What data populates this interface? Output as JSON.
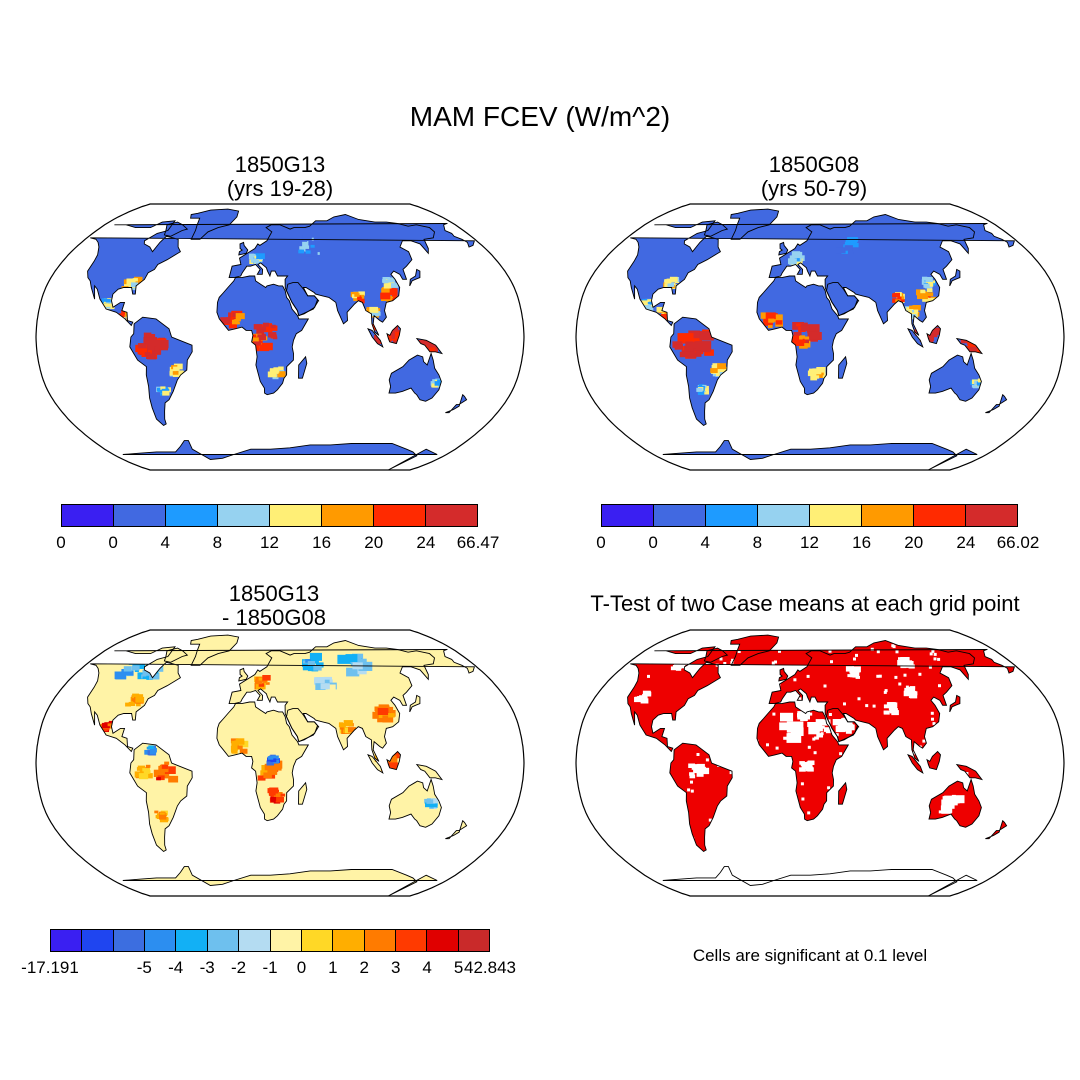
{
  "title": "MAM FCEV (W/m^2)",
  "colors": {
    "ocean": "#ffffff",
    "outline": "#000000",
    "significant": "#ee0000"
  },
  "panels": [
    {
      "id": "case1",
      "title_line1": "1850G13",
      "title_line2": "(yrs 19-28)",
      "base_color": "#4169e1",
      "antarctica_color": "#4169e1",
      "colorbar": {
        "labels": [
          "0",
          "0",
          "4",
          "8",
          "12",
          "16",
          "20",
          "24",
          "66.47"
        ],
        "colors": [
          "#3a1ff2",
          "#4169e1",
          "#1e9bff",
          "#96d2f0",
          "#ffef76",
          "#ff9a00",
          "#ff2a00",
          "#d42b2b"
        ]
      }
    },
    {
      "id": "case2",
      "title_line1": "1850G08",
      "title_line2": "(yrs 50-79)",
      "base_color": "#4169e1",
      "antarctica_color": "#4169e1",
      "colorbar": {
        "labels": [
          "0",
          "0",
          "4",
          "8",
          "12",
          "16",
          "20",
          "24",
          "66.02"
        ],
        "colors": [
          "#3a1ff2",
          "#4169e1",
          "#1e9bff",
          "#96d2f0",
          "#ffef76",
          "#ff9a00",
          "#ff2a00",
          "#d42b2b"
        ]
      }
    },
    {
      "id": "diff",
      "title_line1": "1850G13",
      "title_line2": "- 1850G08",
      "base_color": "#fff3a6",
      "antarctica_color": "#fff3a6",
      "colorbar": {
        "labels": [
          "-17.191",
          "-5",
          "-4",
          "-3",
          "-2",
          "-1",
          "0",
          "1",
          "2",
          "3",
          "4",
          "5",
          "42.843"
        ],
        "colors": [
          "#3a1ff2",
          "#1f45f0",
          "#3c6ee0",
          "#2c8ef0",
          "#12b0f5",
          "#6ec0ee",
          "#b4dcf2",
          "#fff3a6",
          "#ffd826",
          "#ffae00",
          "#ff7b00",
          "#ff3a00",
          "#e00000",
          "#c92a2a"
        ]
      }
    },
    {
      "id": "ttest",
      "title_line1": "T-Test of two Case means at each grid point",
      "title_line2": "",
      "base_color": "#ee0000",
      "antarctica_color": "#ffffff",
      "note": "Cells are significant at 0.1 level"
    }
  ]
}
